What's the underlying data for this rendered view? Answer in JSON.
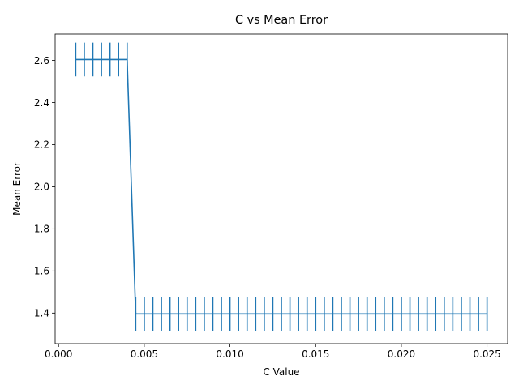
{
  "chart_data": {
    "type": "line",
    "title": "C vs Mean Error",
    "xlabel": "C Value",
    "ylabel": "Mean Error",
    "xlim": [
      -0.0002,
      0.0262
    ],
    "ylim": [
      1.255,
      2.725
    ],
    "grid": false,
    "xticks": [
      0.0,
      0.005,
      0.01,
      0.015,
      0.02,
      0.025
    ],
    "xtick_labels": [
      "0.000",
      "0.005",
      "0.010",
      "0.015",
      "0.020",
      "0.025"
    ],
    "yticks": [
      1.4,
      1.6,
      1.8,
      2.0,
      2.2,
      2.4,
      2.6
    ],
    "ytick_labels": [
      "1.4",
      "1.6",
      "1.8",
      "2.0",
      "2.2",
      "2.4",
      "2.6"
    ],
    "series": [
      {
        "color": "#1f77b4",
        "error_bar": 0.08,
        "x": [
          0.001,
          0.0015,
          0.002,
          0.0025,
          0.003,
          0.0035,
          0.004,
          0.0045,
          0.005,
          0.0055,
          0.006,
          0.0065,
          0.007,
          0.0075,
          0.008,
          0.0085,
          0.009,
          0.0095,
          0.01,
          0.0105,
          0.011,
          0.0115,
          0.012,
          0.0125,
          0.013,
          0.0135,
          0.014,
          0.0145,
          0.015,
          0.0155,
          0.016,
          0.0165,
          0.017,
          0.0175,
          0.018,
          0.0185,
          0.019,
          0.0195,
          0.02,
          0.0205,
          0.021,
          0.0215,
          0.022,
          0.0225,
          0.023,
          0.0235,
          0.024,
          0.0245,
          0.025
        ],
        "y": [
          2.604,
          2.604,
          2.604,
          2.604,
          2.604,
          2.604,
          2.604,
          1.396,
          1.396,
          1.396,
          1.396,
          1.396,
          1.396,
          1.396,
          1.396,
          1.396,
          1.396,
          1.396,
          1.396,
          1.396,
          1.396,
          1.396,
          1.396,
          1.396,
          1.396,
          1.396,
          1.396,
          1.396,
          1.396,
          1.396,
          1.396,
          1.396,
          1.396,
          1.396,
          1.396,
          1.396,
          1.396,
          1.396,
          1.396,
          1.396,
          1.396,
          1.396,
          1.396,
          1.396,
          1.396,
          1.396,
          1.396,
          1.396,
          1.396
        ]
      }
    ]
  }
}
